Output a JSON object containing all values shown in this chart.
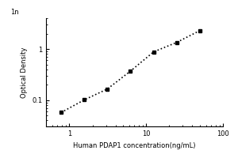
{
  "xlabel": "Human PDAP1 concentration(ng/mL)",
  "ylabel": "Optical Density",
  "x_data": [
    0.78,
    1.563,
    3.125,
    6.25,
    12.5,
    25,
    50
  ],
  "y_data": [
    0.057,
    0.101,
    0.165,
    0.37,
    0.88,
    1.35,
    2.3
  ],
  "xlim": [
    0.5,
    100
  ],
  "ylim": [
    0.03,
    4
  ],
  "marker": "s",
  "marker_color": "black",
  "marker_size": 3,
  "line_style": "dotted",
  "line_color": "black",
  "line_width": 1.2,
  "background_color": "#ffffff",
  "tick_label_fontsize": 6,
  "axis_label_fontsize": 6,
  "ytick_positions": [
    0.1,
    1
  ],
  "ytick_labels": [
    "0.1",
    "1"
  ],
  "xtick_positions": [
    1,
    10,
    100
  ],
  "xtick_labels": [
    "1",
    "10",
    "100"
  ]
}
